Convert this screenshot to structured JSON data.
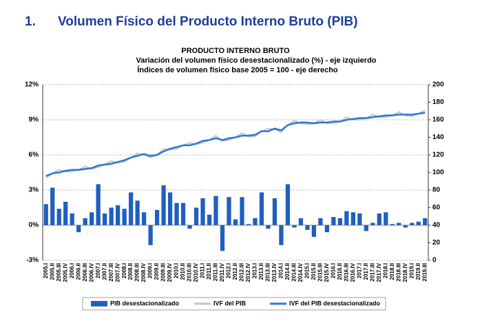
{
  "heading": {
    "number": "1.",
    "title": "Volumen Físico del Producto Interno Bruto (PIB)"
  },
  "chart_data": {
    "type": "bar_line",
    "title": "PRODUCTO INTERNO BRUTO",
    "subtitle": [
      "Variación del volumen físico desestacionalizado (%) - eje izquierdo",
      "Índices de volumen físico base 2005 = 100 - eje derecho"
    ],
    "categories": [
      "2005.I",
      "2005.II",
      "2005.III",
      "2005.IV",
      "2006.I",
      "2006.II",
      "2006.III",
      "2006.IV",
      "2007.I",
      "2007.II",
      "2007.III",
      "2007.IV",
      "2008.I",
      "2008.II",
      "2008.III",
      "2008.IV",
      "2009.I",
      "2009.II",
      "2009.III",
      "2009.IV",
      "2010.I",
      "2010.II",
      "2010.III",
      "2010.IV",
      "2011.I",
      "2011.II",
      "2011.III",
      "2011.IV",
      "2012.I",
      "2012.II",
      "2012.III",
      "2012.IV",
      "2013.I",
      "2013.II",
      "2013.III",
      "2013.IV",
      "2014.I",
      "2014.II",
      "2014.III",
      "2014.IV",
      "2015.I",
      "2015.II",
      "2015.III",
      "2015.IV",
      "2016.I",
      "2016.II",
      "2016.III",
      "2016.IV",
      "2017.I",
      "2017.II",
      "2017.III",
      "2017.IV",
      "2018.I",
      "2018.II",
      "2018.III",
      "2018.IV",
      "2019.I",
      "2019.II",
      "2019.III"
    ],
    "series": [
      {
        "name": "PIB desestacionalizado",
        "kind": "bar",
        "color": "#1f5fbf",
        "axis": "y",
        "values": [
          1.8,
          3.2,
          1.4,
          2.0,
          1.0,
          -0.6,
          0.6,
          1.1,
          3.5,
          1.0,
          1.5,
          1.7,
          1.4,
          2.8,
          2.1,
          1.1,
          -1.7,
          1.3,
          3.4,
          2.8,
          1.9,
          1.9,
          -0.3,
          1.5,
          2.3,
          0.9,
          2.5,
          -2.2,
          2.4,
          0.5,
          2.4,
          0.1,
          0.6,
          2.8,
          -0.3,
          2.3,
          -1.7,
          3.5,
          -0.2,
          0.6,
          -0.4,
          -1.0,
          0.6,
          -0.6,
          0.7,
          0.6,
          1.2,
          1.1,
          1.0,
          -0.5,
          0.2,
          1.0,
          1.1,
          0.1,
          0.2,
          -0.2,
          0.2,
          0.3,
          0.6
        ]
      },
      {
        "name": "IVF del PIB",
        "kind": "line",
        "color": "#c4c4c4",
        "axis": "y2",
        "values": [
          94,
          99,
          103,
          101,
          101,
          103,
          107,
          104,
          106,
          109,
          113,
          111,
          112,
          117,
          122,
          120,
          117,
          120,
          127,
          126,
          127,
          131,
          134,
          132,
          134,
          137,
          142,
          136,
          137,
          140,
          145,
          141,
          141,
          147,
          150,
          149,
          146,
          154,
          159,
          156,
          155,
          156,
          160,
          156,
          156,
          158,
          163,
          160,
          160,
          162,
          166,
          163,
          163,
          165,
          169,
          165,
          164,
          167,
          171
        ]
      },
      {
        "name": "IVF del PIB desestacionalizado",
        "kind": "line",
        "color": "#2e75d6",
        "axis": "y2",
        "values": [
          96,
          99,
          100,
          102,
          103,
          103,
          104,
          105,
          108,
          109,
          110,
          112,
          114,
          117,
          119,
          121,
          119,
          120,
          124,
          127,
          129,
          131,
          131,
          133,
          136,
          137,
          139,
          137,
          139,
          140,
          142,
          142,
          143,
          147,
          147,
          150,
          148,
          154,
          156,
          157,
          157,
          156,
          157,
          157,
          158,
          158,
          160,
          161,
          162,
          162,
          163,
          164,
          165,
          165,
          166,
          166,
          166,
          167,
          168
        ]
      }
    ],
    "ylim": [
      -3,
      12
    ],
    "yticks": [
      {
        "value": -3,
        "label": "-3%"
      },
      {
        "value": 0,
        "label": "0%"
      },
      {
        "value": 3,
        "label": "3%"
      },
      {
        "value": 6,
        "label": "6%"
      },
      {
        "value": 9,
        "label": "9%"
      },
      {
        "value": 12,
        "label": "12%"
      }
    ],
    "y2lim": [
      0,
      200
    ],
    "y2ticks": [
      0,
      20,
      40,
      60,
      80,
      100,
      120,
      140,
      160,
      180,
      200
    ],
    "grid": true
  }
}
